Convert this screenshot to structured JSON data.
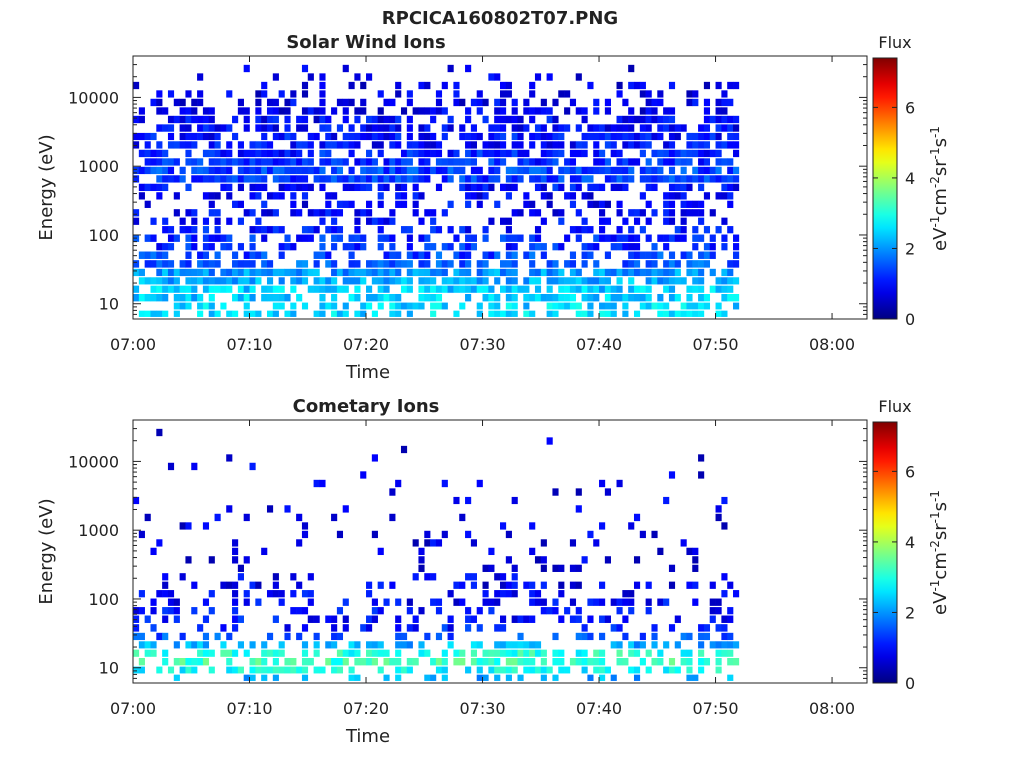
{
  "figure": {
    "title": "RPCICA160802T07.PNG"
  },
  "chart_data": [
    {
      "type": "heatmap",
      "title": "Solar Wind Ions",
      "xlabel": "Time",
      "ylabel": "Energy (eV)",
      "x_ticks": [
        "07:00",
        "07:10",
        "07:20",
        "07:30",
        "07:40",
        "07:50",
        "08:00"
      ],
      "x_tick_minutes": [
        0,
        10,
        20,
        30,
        40,
        50,
        60
      ],
      "xlim_minutes": [
        0,
        63
      ],
      "data_end_minutes": 52,
      "y_scale": "log",
      "y_ticks": [
        "10",
        "100",
        "1000",
        "10000"
      ],
      "y_tick_values": [
        10,
        100,
        1000,
        10000
      ],
      "ylim": [
        6,
        40000
      ],
      "colorbar": {
        "label": "Flux",
        "unit_label": "eV-1cm-2sr-1s-1",
        "ticks": [
          "0",
          "2",
          "4",
          "6"
        ],
        "tick_values": [
          0,
          2,
          4,
          6
        ],
        "range": [
          0,
          7.4
        ],
        "colormap": "jet"
      },
      "flux_by_energy": [
        {
          "energy_ev": 7,
          "flux": 2.5,
          "occupancy": 0.55
        },
        {
          "energy_ev": 9,
          "flux": 2.5,
          "occupancy": 0.6
        },
        {
          "energy_ev": 12,
          "flux": 2.4,
          "occupancy": 0.7
        },
        {
          "energy_ev": 16,
          "flux": 2.4,
          "occupancy": 0.75
        },
        {
          "energy_ev": 21,
          "flux": 2.2,
          "occupancy": 0.8
        },
        {
          "energy_ev": 28,
          "flux": 2.0,
          "occupancy": 0.8
        },
        {
          "energy_ev": 37,
          "flux": 1.6,
          "occupancy": 0.55
        },
        {
          "energy_ev": 50,
          "flux": 1.4,
          "occupancy": 0.45
        },
        {
          "energy_ev": 66,
          "flux": 1.2,
          "occupancy": 0.5
        },
        {
          "energy_ev": 88,
          "flux": 1.2,
          "occupancy": 0.55
        },
        {
          "energy_ev": 117,
          "flux": 1.1,
          "occupancy": 0.45
        },
        {
          "energy_ev": 155,
          "flux": 1.0,
          "occupancy": 0.35
        },
        {
          "energy_ev": 206,
          "flux": 0.9,
          "occupancy": 0.45
        },
        {
          "energy_ev": 273,
          "flux": 0.9,
          "occupancy": 0.35
        },
        {
          "energy_ev": 363,
          "flux": 0.9,
          "occupancy": 0.4
        },
        {
          "energy_ev": 482,
          "flux": 1.0,
          "occupancy": 0.55
        },
        {
          "energy_ev": 640,
          "flux": 1.3,
          "occupancy": 0.85
        },
        {
          "energy_ev": 850,
          "flux": 1.4,
          "occupancy": 0.8
        },
        {
          "energy_ev": 1130,
          "flux": 1.2,
          "occupancy": 0.75
        },
        {
          "energy_ev": 1500,
          "flux": 1.1,
          "occupancy": 0.7
        },
        {
          "energy_ev": 2000,
          "flux": 1.0,
          "occupancy": 0.75
        },
        {
          "energy_ev": 2650,
          "flux": 1.0,
          "occupancy": 0.7
        },
        {
          "energy_ev": 3500,
          "flux": 0.9,
          "occupancy": 0.6
        },
        {
          "energy_ev": 4700,
          "flux": 0.9,
          "occupancy": 0.55
        },
        {
          "energy_ev": 6200,
          "flux": 0.8,
          "occupancy": 0.5
        },
        {
          "energy_ev": 8300,
          "flux": 0.8,
          "occupancy": 0.45
        },
        {
          "energy_ev": 11000,
          "flux": 0.7,
          "occupancy": 0.35
        },
        {
          "energy_ev": 14600,
          "flux": 0.7,
          "occupancy": 0.25
        },
        {
          "energy_ev": 19400,
          "flux": 0.7,
          "occupancy": 0.15
        },
        {
          "energy_ev": 25800,
          "flux": 0.7,
          "occupancy": 0.08
        }
      ]
    },
    {
      "type": "heatmap",
      "title": "Cometary Ions",
      "xlabel": "Time",
      "ylabel": "Energy (eV)",
      "x_ticks": [
        "07:00",
        "07:10",
        "07:20",
        "07:30",
        "07:40",
        "07:50",
        "08:00"
      ],
      "x_tick_minutes": [
        0,
        10,
        20,
        30,
        40,
        50,
        60
      ],
      "xlim_minutes": [
        0,
        63
      ],
      "data_end_minutes": 52,
      "y_scale": "log",
      "y_ticks": [
        "10",
        "100",
        "1000",
        "10000"
      ],
      "y_tick_values": [
        10,
        100,
        1000,
        10000
      ],
      "ylim": [
        6,
        40000
      ],
      "colorbar": {
        "label": "Flux",
        "unit_label": "eV-1cm-2sr-1s-1",
        "ticks": [
          "0",
          "2",
          "4",
          "6"
        ],
        "tick_values": [
          0,
          2,
          4,
          6
        ],
        "range": [
          0,
          7.4
        ],
        "colormap": "jet"
      },
      "flux_by_energy": [
        {
          "energy_ev": 7,
          "flux": 2.2,
          "occupancy": 0.3
        },
        {
          "energy_ev": 9,
          "flux": 2.8,
          "occupancy": 0.55
        },
        {
          "energy_ev": 12,
          "flux": 3.2,
          "occupancy": 0.6
        },
        {
          "energy_ev": 16,
          "flux": 3.0,
          "occupancy": 0.6
        },
        {
          "energy_ev": 21,
          "flux": 2.2,
          "occupancy": 0.55
        },
        {
          "energy_ev": 28,
          "flux": 1.6,
          "occupancy": 0.35
        },
        {
          "energy_ev": 37,
          "flux": 1.1,
          "occupancy": 0.25
        },
        {
          "energy_ev": 50,
          "flux": 1.0,
          "occupancy": 0.35
        },
        {
          "energy_ev": 66,
          "flux": 1.0,
          "occupancy": 0.3
        },
        {
          "energy_ev": 88,
          "flux": 0.9,
          "occupancy": 0.35
        },
        {
          "energy_ev": 117,
          "flux": 0.9,
          "occupancy": 0.3
        },
        {
          "energy_ev": 155,
          "flux": 0.8,
          "occupancy": 0.3
        },
        {
          "energy_ev": 206,
          "flux": 0.8,
          "occupancy": 0.15
        },
        {
          "energy_ev": 273,
          "flux": 0.7,
          "occupancy": 0.1
        },
        {
          "energy_ev": 363,
          "flux": 0.7,
          "occupancy": 0.08
        },
        {
          "energy_ev": 482,
          "flux": 0.7,
          "occupancy": 0.08
        },
        {
          "energy_ev": 640,
          "flux": 0.7,
          "occupancy": 0.1
        },
        {
          "energy_ev": 850,
          "flux": 0.7,
          "occupancy": 0.12
        },
        {
          "energy_ev": 1130,
          "flux": 0.7,
          "occupancy": 0.1
        },
        {
          "energy_ev": 1500,
          "flux": 0.7,
          "occupancy": 0.08
        },
        {
          "energy_ev": 2000,
          "flux": 0.7,
          "occupancy": 0.07
        },
        {
          "energy_ev": 2650,
          "flux": 0.7,
          "occupancy": 0.06
        },
        {
          "energy_ev": 3500,
          "flux": 0.7,
          "occupancy": 0.05
        },
        {
          "energy_ev": 4700,
          "flux": 0.7,
          "occupancy": 0.05
        },
        {
          "energy_ev": 6200,
          "flux": 0.7,
          "occupancy": 0.04
        },
        {
          "energy_ev": 8300,
          "flux": 0.7,
          "occupancy": 0.04
        },
        {
          "energy_ev": 11000,
          "flux": 0.7,
          "occupancy": 0.03
        },
        {
          "energy_ev": 14600,
          "flux": 0.7,
          "occupancy": 0.02
        },
        {
          "energy_ev": 19400,
          "flux": 0.7,
          "occupancy": 0.01
        },
        {
          "energy_ev": 25800,
          "flux": 0.7,
          "occupancy": 0.01
        }
      ]
    }
  ]
}
